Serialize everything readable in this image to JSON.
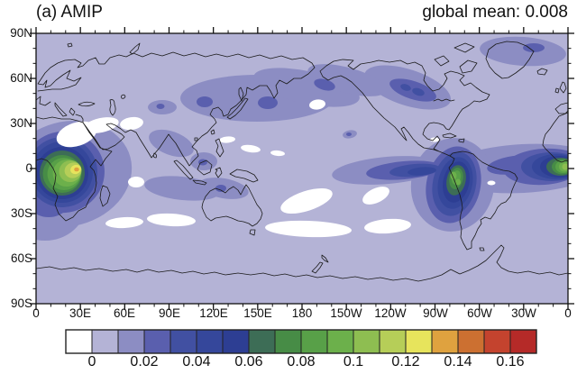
{
  "title": "(a) AMIP",
  "global_mean_label": "global mean: 0.008",
  "map": {
    "lat_ticks": [
      "90N",
      "60N",
      "30N",
      "0",
      "30S",
      "60S",
      "90S"
    ],
    "lon_ticks": [
      "0",
      "30E",
      "60E",
      "90E",
      "120E",
      "150E",
      "180",
      "150W",
      "120W",
      "90W",
      "60W",
      "30W",
      "0"
    ]
  },
  "colorbar": {
    "labels": [
      "0",
      "0.02",
      "0.04",
      "0.06",
      "0.08",
      "0.1",
      "0.12",
      "0.14",
      "0.16"
    ],
    "colors": [
      "#ffffff",
      "#b4b3d6",
      "#8c8dc3",
      "#5a5fae",
      "#4150a2",
      "#35479b",
      "#2d3e93",
      "#3d6d56",
      "#478c46",
      "#58a048",
      "#6cb04b",
      "#8ebe51",
      "#b6ce58",
      "#e7e45c",
      "#dfa23f",
      "#cc7031",
      "#c4432e",
      "#b52a28"
    ]
  },
  "chart_data": {
    "type": "heatmap",
    "title": "(a) AMIP",
    "annotation": "global mean: 0.008",
    "projection": "global equirectangular map, longitude 0E eastward through 180 back to 0, latitude 90N to 90S",
    "x_tick_labels": [
      "0",
      "30E",
      "60E",
      "90E",
      "120E",
      "150E",
      "180",
      "150W",
      "120W",
      "90W",
      "60W",
      "30W",
      "0"
    ],
    "y_tick_labels": [
      "90N",
      "60N",
      "30N",
      "0",
      "30S",
      "60S",
      "90S"
    ],
    "contour_levels": [
      0,
      0.01,
      0.02,
      0.03,
      0.04,
      0.05,
      0.06,
      0.07,
      0.08,
      0.09,
      0.1,
      0.11,
      0.12,
      0.13,
      0.14,
      0.15,
      0.16
    ],
    "labeled_levels": [
      0,
      0.02,
      0.04,
      0.06,
      0.08,
      0.1,
      0.12,
      0.14,
      0.16
    ],
    "palette": [
      "#ffffff",
      "#b4b3d6",
      "#8c8dc3",
      "#5a5fae",
      "#4150a2",
      "#35479b",
      "#2d3e93",
      "#3d6d56",
      "#478c46",
      "#58a048",
      "#6cb04b",
      "#8ebe51",
      "#b6ce58",
      "#e7e45c",
      "#dfa23f",
      "#cc7031",
      "#c4432e",
      "#b52a28"
    ],
    "background_field_value": "0 to 0.01 over most of globe (light lavender)",
    "regions": [
      {
        "name": "equatorial-africa-congo-maximum",
        "approx_lon": "20E",
        "approx_lat": "3S",
        "peak_value": 0.15
      },
      {
        "name": "equatorial-atlantic-gulf-of-guinea-maximum",
        "approx_lon": "5W-0",
        "approx_lat": "2S",
        "peak_value": 0.11
      },
      {
        "name": "south-america-bolivia-maximum",
        "approx_lon": "62W",
        "approx_lat": "13S",
        "peak_value": 0.1
      },
      {
        "name": "east-pacific-equatorial-band",
        "approx_lon": "130W-85W",
        "approx_lat": "0-8S",
        "peak_value": 0.05
      },
      {
        "name": "central-canada-hudson-bay",
        "approx_lon": "105W-70W",
        "approx_lat": "50N-65N",
        "peak_value": 0.04
      },
      {
        "name": "east-siberia",
        "approx_lon": "90E-170E",
        "approx_lat": "45N-65N",
        "peak_value": 0.03
      },
      {
        "name": "north-atlantic-greenland-scandinavia",
        "approx_lon": "45W-20E",
        "approx_lat": "62N-80N",
        "peak_value": 0.03
      },
      {
        "name": "maritime-continent-se-indian-ocean",
        "approx_lon": "85E-135E",
        "approx_lat": "5N-25S",
        "peak_value": 0.03
      },
      {
        "name": "china-korea-patch",
        "approx_lon": "105E-120E",
        "approx_lat": "30N-38N",
        "peak_value": 0.02
      },
      {
        "name": "hawaii-patch",
        "approx_lon": "158W",
        "approx_lat": "22N",
        "peak_value": 0.02
      },
      {
        "name": "middle-east-to-north-india-minimum",
        "approx_lon": "25E-75E",
        "approx_lat": "15N-35N",
        "value": "below 0 (white)"
      },
      {
        "name": "southern-ocean-minima",
        "approx_lon": "45E-95W",
        "approx_lat": "48S-60S",
        "value": "below 0 (white)"
      },
      {
        "name": "subtropical-south-pacific-minima",
        "approx_lon": "165E-100W",
        "approx_lat": "12S-35S",
        "value": "below 0 (white)"
      },
      {
        "name": "north-central-pacific-minimum",
        "approx_lon": "172W",
        "approx_lat": "42N",
        "value": "below 0 (white)"
      }
    ]
  }
}
